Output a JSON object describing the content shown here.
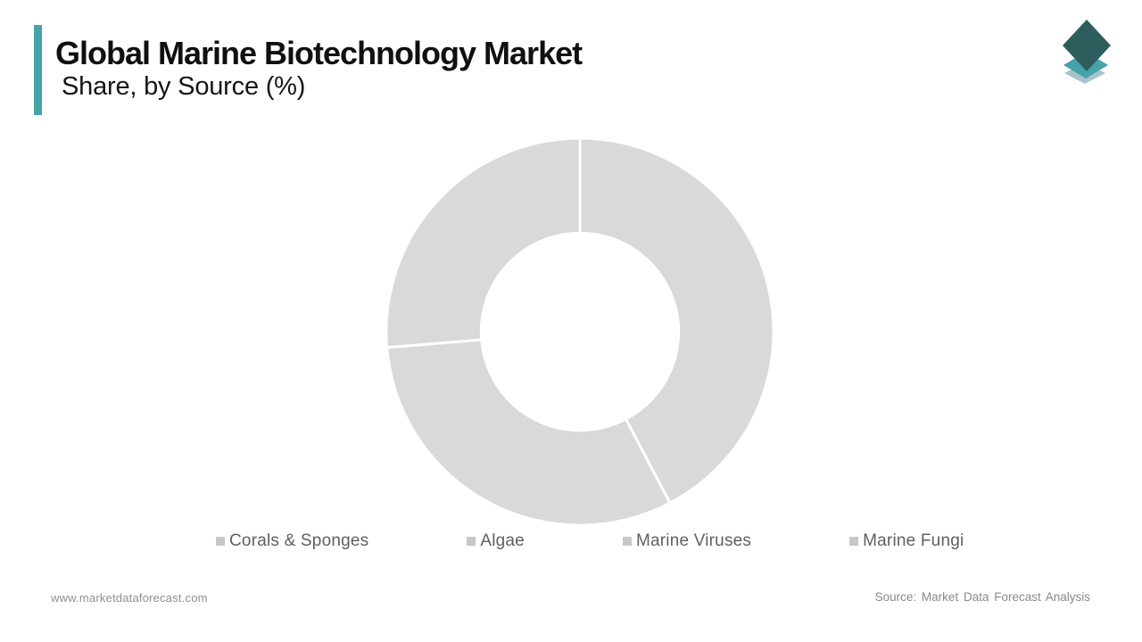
{
  "header": {
    "title": "Global Marine Biotechnology Market",
    "subtitle": "Share, by Source (%)",
    "accent_color": "#44a4a6"
  },
  "logo": {
    "name": "market-data-forecast-logo",
    "colors": {
      "top_layer": "#2d5e5d",
      "middle_layer": "#46a3a8",
      "bottom_layer": "#a7c4cb"
    }
  },
  "chart_data": {
    "type": "pie",
    "variant": "donut",
    "title": "Global Marine Biotechnology Market Share, by Source (%)",
    "categories": [
      "Corals & Sponges",
      "Algae",
      "Marine Viruses",
      "Marine Fungi"
    ],
    "values": [
      42.3,
      31.4,
      26.3,
      0
    ],
    "unit": "%",
    "start_angle_deg": 0,
    "direction": "clockwise",
    "inner_radius_ratio": 0.51,
    "slice_color": "#d9d9d9",
    "divider_color": "#ffffff",
    "legend_position": "bottom",
    "note": "All slices drawn in uniform placeholder gray with no data labels; values estimated from white divider angles at ~0°, ~152° and ~266°; no visible slice for the fourth legend entry."
  },
  "legend": {
    "marker_color": "#c7c7c7"
  },
  "footer": {
    "website": "www.marketdataforecast.com",
    "source": "Source: Market Data Forecast Analysis"
  }
}
